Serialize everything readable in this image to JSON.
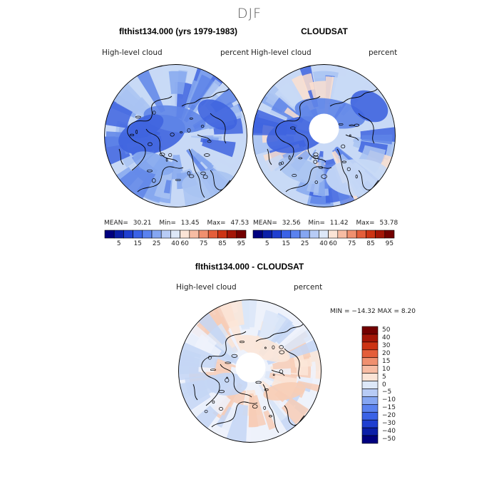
{
  "figure": {
    "title": "DJF"
  },
  "panels": [
    {
      "title": "flthist134.000 (yrs 1979-1983)",
      "left_label": "High-level  cloud",
      "right_label": "percent",
      "stats": {
        "mean_label": "MEAN=",
        "mean": "30.21",
        "min_label": "Min=",
        "min": "13.45",
        "max_label": "Max=",
        "max": "47.53"
      }
    },
    {
      "title": "CLOUDSAT",
      "left_label": "High-level  cloud",
      "right_label": "percent",
      "stats": {
        "mean_label": "MEAN=",
        "mean": "32.56",
        "min_label": "Min=",
        "min": "11.42",
        "max_label": "Max=",
        "max": "53.78"
      }
    },
    {
      "title": "flthist134.000 - CLOUDSAT",
      "left_label": "High-level  cloud",
      "right_label": "percent",
      "stats_text": "MIN = −14.32  MAX =     8.20"
    }
  ],
  "colorbar_abs": {
    "colors": [
      "#00007f",
      "#0b1fa8",
      "#1f3fd0",
      "#3a62e6",
      "#5a82ef",
      "#85a6f2",
      "#b7cbf5",
      "#dde8f8",
      "#fbe4d6",
      "#f7bca3",
      "#f0906f",
      "#e45e3a",
      "#cc3414",
      "#a41607",
      "#730000"
    ],
    "tick_labels": [
      "5",
      "15",
      "25",
      "40",
      "60",
      "75",
      "85",
      "95"
    ]
  },
  "colorbar_diff": {
    "colors": [
      "#00007f",
      "#0b1fa8",
      "#1f3fd0",
      "#3a62e6",
      "#5a82ef",
      "#85a6f2",
      "#b7cbf5",
      "#dde8f8",
      "#fbe4d6",
      "#f7bca3",
      "#f0906f",
      "#e45e3a",
      "#cc3414",
      "#a41607",
      "#730000"
    ],
    "tick_labels": [
      "50",
      "40",
      "30",
      "20",
      "15",
      "10",
      "5",
      "0",
      "−5",
      "−10",
      "−15",
      "−20",
      "−30",
      "−40",
      "−50"
    ]
  },
  "map_style": {
    "model_colors": [
      "#c8d9f6",
      "#a9c3f2",
      "#86a8ee",
      "#5f85e8",
      "#3f64df"
    ],
    "obs_colors": [
      "#c8d9f6",
      "#a9c3f2",
      "#86a8ee",
      "#5f85e8",
      "#3f64df",
      "#fbdfcf"
    ],
    "diff_colors": [
      "#eef2fb",
      "#dbe6f8",
      "#c4d6f5",
      "#fbe6d8",
      "#f7cdb6"
    ],
    "pole_hole": true,
    "coastline_color": "#000000"
  }
}
